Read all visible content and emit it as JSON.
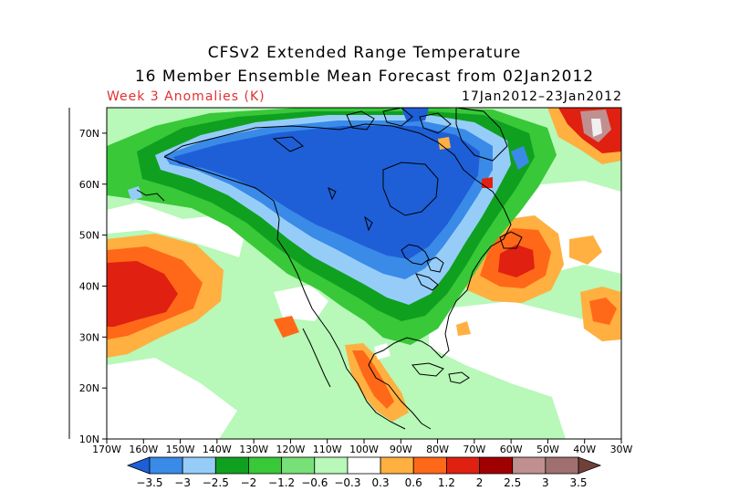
{
  "title_line1": "CFSv2 Extended Range Temperature",
  "title_line2": "16 Member Ensemble Mean Forecast from 02Jan2012",
  "subtitle_left": "Week 3 Anomalies (K)",
  "subtitle_right": "17Jan2012–23Jan2012",
  "map": {
    "lon_range": [
      -170,
      -30
    ],
    "lat_range": [
      10,
      75
    ],
    "lat_ticks": [
      {
        "value": 70,
        "label": "70N"
      },
      {
        "value": 60,
        "label": "60N"
      },
      {
        "value": 50,
        "label": "50N"
      },
      {
        "value": 40,
        "label": "40N"
      },
      {
        "value": 30,
        "label": "30N"
      },
      {
        "value": 20,
        "label": "20N"
      },
      {
        "value": 10,
        "label": "10N"
      }
    ],
    "lon_ticks": [
      {
        "value": -170,
        "label": "170W"
      },
      {
        "value": -160,
        "label": "160W"
      },
      {
        "value": -150,
        "label": "150W"
      },
      {
        "value": -140,
        "label": "140W"
      },
      {
        "value": -130,
        "label": "130W"
      },
      {
        "value": -120,
        "label": "120W"
      },
      {
        "value": -110,
        "label": "110W"
      },
      {
        "value": -100,
        "label": "100W"
      },
      {
        "value": -90,
        "label": "90W"
      },
      {
        "value": -80,
        "label": "80W"
      },
      {
        "value": -70,
        "label": "70W"
      },
      {
        "value": -60,
        "label": "60W"
      },
      {
        "value": -50,
        "label": "50W"
      },
      {
        "value": -40,
        "label": "40W"
      },
      {
        "value": -30,
        "label": "30W"
      }
    ]
  },
  "colorbar": {
    "labels": [
      "−3.5",
      "−3",
      "−2.5",
      "−2",
      "−1.2",
      "−0.6",
      "−0.3",
      "0.3",
      "0.6",
      "1.2",
      "2",
      "2.5",
      "3",
      "3.5"
    ],
    "colors": [
      "#1e5fd8",
      "#3a8ae8",
      "#96cdf8",
      "#10a020",
      "#38c838",
      "#78e078",
      "#b8f8b8",
      "#ffffff",
      "#ffb040",
      "#ff6818",
      "#e02010",
      "#a00000",
      "#c09090",
      "#a07070",
      "#704038"
    ]
  },
  "colors": {
    "background_anomaly": "#b8f8b8",
    "cold_core": "#1e5fd8",
    "warm_core": "#e02010"
  }
}
